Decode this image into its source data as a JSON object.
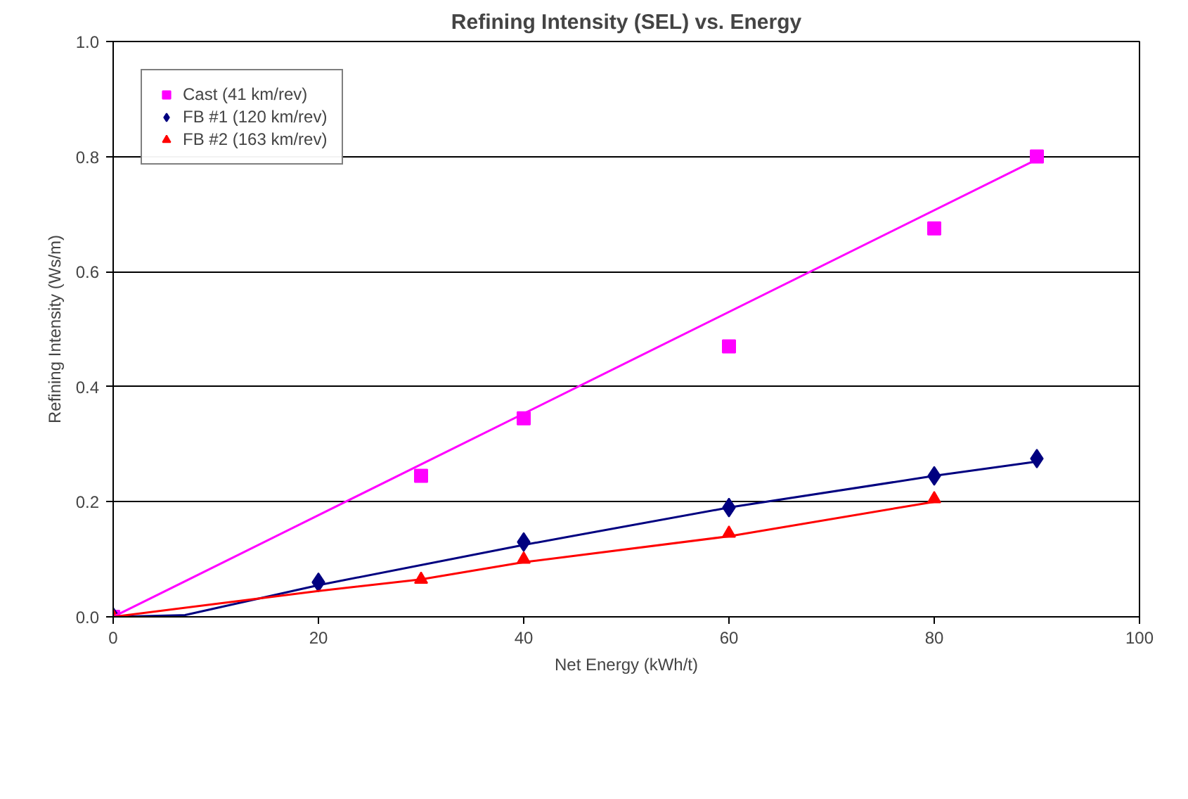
{
  "chart_data": {
    "type": "scatter",
    "title": "Refining Intensity (SEL) vs. Energy",
    "xlabel": "Net Energy (kWh/t)",
    "ylabel": "Refining Intensity (Ws/m)",
    "xlim": [
      0,
      100
    ],
    "ylim": [
      0,
      1
    ],
    "xticks": [
      0,
      20,
      40,
      60,
      80,
      100
    ],
    "yticks": [
      {
        "value": 0,
        "label": "0.0"
      },
      {
        "value": 0.2,
        "label": "0.2"
      },
      {
        "value": 0.4,
        "label": "0.4"
      },
      {
        "value": 0.6,
        "label": "0.6"
      },
      {
        "value": 0.8,
        "label": "0.8"
      },
      {
        "value": 1,
        "label": "1.0"
      }
    ],
    "grid": "y",
    "legend": "top left",
    "series": [
      {
        "name": "Cast (41 km/rev)",
        "color": "#ff00ff",
        "marker": "square",
        "x": [
          0,
          30,
          40,
          60,
          80,
          90
        ],
        "values": [
          0,
          0.245,
          0.345,
          0.47,
          0.675,
          0.8
        ]
      },
      {
        "name": "FB #1 (120 km/rev)",
        "color": "#000080",
        "marker": "diamond",
        "x": [
          0,
          20,
          40,
          60,
          80,
          90
        ],
        "values": [
          0,
          0.06,
          0.13,
          0.19,
          0.245,
          0.275
        ]
      },
      {
        "name": "FB #2 (163 km/rev)",
        "color": "#ff0000",
        "marker": "triangle",
        "x": [
          0,
          30,
          40,
          60,
          80
        ],
        "values": [
          0,
          0.065,
          0.1,
          0.145,
          0.205
        ]
      },
      {
        "type": "line",
        "color": "#ff00ff",
        "x": [
          0,
          90
        ],
        "values": [
          0,
          0.795
        ]
      },
      {
        "type": "line",
        "color": "#000080",
        "x": [
          0,
          7,
          20,
          40,
          60,
          80,
          90
        ],
        "values": [
          0,
          0.003,
          0.055,
          0.125,
          0.19,
          0.245,
          0.27
        ]
      },
      {
        "type": "line",
        "color": "#ff0000",
        "x": [
          0,
          20,
          30,
          40,
          60,
          80
        ],
        "values": [
          0,
          0.045,
          0.065,
          0.095,
          0.14,
          0.2
        ]
      }
    ]
  }
}
